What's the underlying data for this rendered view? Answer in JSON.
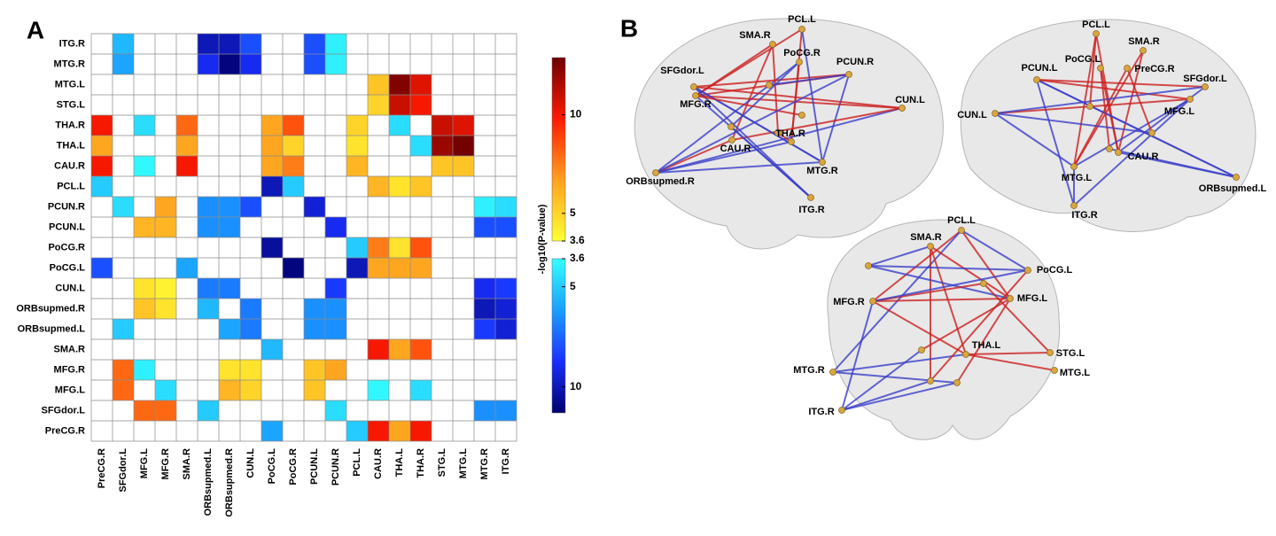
{
  "chart_data": {
    "type": "heatmap",
    "panel_label": "A",
    "rows": [
      "ITG.R",
      "MTG.R",
      "MTG.L",
      "STG.L",
      "THA.R",
      "THA.L",
      "CAU.R",
      "PCL.L",
      "PCUN.R",
      "PCUN.L",
      "PoCG.R",
      "PoCG.L",
      "CUN.L",
      "ORBsupmed.R",
      "ORBsupmed.L",
      "SMA.R",
      "MFG.R",
      "MFG.L",
      "SFGdor.L",
      "PreCG.R"
    ],
    "columns": [
      "PreCG.R",
      "SFGdor.L",
      "MFG.L",
      "MFG.R",
      "SMA.R",
      "ORBsupmed.L",
      "ORBsupmed.R",
      "CUN.L",
      "PoCG.L",
      "PoCG.R",
      "PCUN.L",
      "PCUN.R",
      "PCL.L",
      "CAU.R",
      "THA.L",
      "THA.R",
      "STG.L",
      "MTG.L",
      "MTG.R",
      "ITG.R"
    ],
    "z_warm": [
      [
        null,
        null,
        null,
        null,
        null,
        null,
        null,
        null,
        null,
        null,
        null,
        null,
        null,
        null,
        null,
        null,
        null,
        null,
        null,
        null
      ],
      [
        null,
        null,
        null,
        null,
        null,
        null,
        null,
        null,
        null,
        null,
        null,
        null,
        null,
        null,
        null,
        null,
        null,
        null,
        null,
        null
      ],
      [
        null,
        null,
        null,
        null,
        null,
        null,
        null,
        null,
        null,
        null,
        null,
        null,
        null,
        5.5,
        12.5,
        10.5,
        null,
        null,
        null,
        null
      ],
      [
        null,
        null,
        null,
        null,
        null,
        null,
        null,
        null,
        null,
        null,
        null,
        null,
        null,
        5,
        11,
        10,
        null,
        null,
        null,
        null
      ],
      [
        10,
        null,
        null,
        null,
        8,
        null,
        null,
        null,
        6.5,
        8.5,
        null,
        null,
        5,
        null,
        null,
        null,
        11,
        10.5,
        null,
        null
      ],
      [
        6.5,
        null,
        null,
        null,
        6.5,
        null,
        null,
        null,
        6.5,
        5,
        null,
        null,
        4.5,
        null,
        null,
        null,
        12,
        12.8,
        null,
        null
      ],
      [
        10,
        null,
        null,
        null,
        10,
        null,
        null,
        null,
        6.5,
        7.5,
        null,
        null,
        6,
        null,
        null,
        null,
        5.5,
        5.5,
        null,
        null
      ],
      [
        null,
        null,
        null,
        null,
        null,
        null,
        null,
        null,
        null,
        null,
        null,
        null,
        null,
        6,
        4.5,
        5.5,
        null,
        null,
        null,
        null
      ],
      [
        null,
        null,
        null,
        6.5,
        null,
        null,
        null,
        null,
        null,
        null,
        null,
        null,
        null,
        null,
        null,
        null,
        null,
        null,
        null,
        null
      ],
      [
        null,
        null,
        6,
        6,
        null,
        null,
        null,
        null,
        null,
        null,
        null,
        null,
        null,
        null,
        null,
        null,
        null,
        null,
        null,
        null
      ],
      [
        null,
        null,
        null,
        null,
        null,
        null,
        null,
        null,
        null,
        null,
        null,
        null,
        null,
        7.5,
        4.5,
        8.5,
        null,
        null,
        null,
        null
      ],
      [
        null,
        null,
        null,
        null,
        null,
        null,
        null,
        null,
        null,
        null,
        null,
        null,
        null,
        6.5,
        6.5,
        6.5,
        null,
        null,
        null,
        null
      ],
      [
        null,
        null,
        4.5,
        4,
        null,
        null,
        null,
        null,
        null,
        null,
        null,
        null,
        null,
        null,
        null,
        null,
        null,
        null,
        null,
        null
      ],
      [
        null,
        null,
        5.5,
        4.5,
        null,
        null,
        null,
        null,
        null,
        null,
        null,
        null,
        null,
        null,
        null,
        null,
        null,
        null,
        null,
        null
      ],
      [
        null,
        null,
        null,
        null,
        null,
        null,
        null,
        null,
        null,
        null,
        null,
        null,
        null,
        null,
        null,
        null,
        null,
        null,
        null,
        null
      ],
      [
        null,
        null,
        null,
        null,
        null,
        null,
        null,
        null,
        null,
        null,
        null,
        null,
        null,
        10,
        6.5,
        8.5,
        null,
        null,
        null,
        null
      ],
      [
        null,
        8,
        null,
        null,
        null,
        null,
        4.5,
        4.5,
        null,
        null,
        5.5,
        6.5,
        null,
        null,
        null,
        null,
        null,
        null,
        null,
        null
      ],
      [
        null,
        8,
        null,
        null,
        null,
        null,
        6,
        5,
        null,
        null,
        5.5,
        null,
        null,
        null,
        null,
        null,
        null,
        null,
        null,
        null
      ],
      [
        null,
        null,
        8,
        8,
        null,
        null,
        null,
        null,
        null,
        null,
        null,
        null,
        null,
        null,
        null,
        null,
        null,
        null,
        null,
        null
      ],
      [
        null,
        null,
        null,
        null,
        null,
        null,
        null,
        null,
        null,
        null,
        null,
        null,
        null,
        10,
        6.5,
        10,
        null,
        null,
        null,
        null
      ]
    ],
    "z_cool": [
      [
        null,
        5.5,
        null,
        null,
        null,
        10,
        10,
        8,
        null,
        null,
        8,
        4,
        null,
        null,
        null,
        null,
        null,
        null,
        null,
        null
      ],
      [
        null,
        6,
        null,
        null,
        null,
        9,
        11,
        9,
        null,
        null,
        8,
        4,
        null,
        null,
        null,
        null,
        null,
        null,
        null,
        null
      ],
      [
        null,
        null,
        null,
        null,
        null,
        null,
        null,
        null,
        null,
        null,
        null,
        null,
        null,
        null,
        null,
        null,
        null,
        null,
        null,
        null
      ],
      [
        null,
        null,
        null,
        null,
        null,
        null,
        null,
        null,
        null,
        null,
        null,
        null,
        null,
        null,
        null,
        null,
        null,
        null,
        null,
        null
      ],
      [
        null,
        null,
        4.5,
        null,
        null,
        null,
        null,
        null,
        null,
        null,
        null,
        null,
        null,
        null,
        4.5,
        null,
        null,
        null,
        null,
        null
      ],
      [
        null,
        null,
        null,
        null,
        null,
        null,
        null,
        null,
        null,
        null,
        null,
        null,
        null,
        null,
        null,
        4.5,
        null,
        null,
        null,
        null
      ],
      [
        null,
        null,
        3.8,
        null,
        null,
        null,
        null,
        null,
        null,
        null,
        null,
        null,
        null,
        null,
        null,
        null,
        null,
        null,
        null,
        null
      ],
      [
        5,
        null,
        null,
        null,
        null,
        null,
        null,
        null,
        10,
        5,
        null,
        null,
        null,
        null,
        null,
        null,
        null,
        null,
        null,
        null
      ],
      [
        null,
        4.5,
        null,
        null,
        null,
        6.5,
        6.5,
        8,
        null,
        null,
        9.5,
        null,
        null,
        null,
        null,
        null,
        null,
        null,
        4,
        4.5
      ],
      [
        null,
        null,
        null,
        null,
        null,
        6.5,
        6.5,
        null,
        null,
        null,
        null,
        9,
        null,
        null,
        null,
        null,
        null,
        null,
        8,
        8
      ],
      [
        null,
        null,
        null,
        null,
        null,
        null,
        null,
        null,
        10.5,
        null,
        null,
        null,
        5,
        null,
        null,
        null,
        null,
        null,
        null,
        null
      ],
      [
        8,
        null,
        null,
        null,
        6,
        null,
        null,
        null,
        null,
        11,
        null,
        null,
        10,
        null,
        null,
        null,
        null,
        null,
        null,
        null
      ],
      [
        null,
        null,
        null,
        null,
        null,
        7,
        7,
        null,
        null,
        null,
        null,
        8.5,
        null,
        null,
        null,
        null,
        null,
        null,
        9,
        8.5
      ],
      [
        null,
        null,
        null,
        null,
        null,
        5.5,
        null,
        7,
        null,
        null,
        6.5,
        6.5,
        null,
        null,
        null,
        null,
        null,
        null,
        10,
        9.5
      ],
      [
        null,
        5,
        null,
        null,
        null,
        null,
        6,
        7,
        null,
        null,
        6.5,
        6.5,
        null,
        null,
        null,
        null,
        null,
        null,
        8.5,
        9.5
      ],
      [
        null,
        null,
        null,
        null,
        null,
        null,
        null,
        null,
        5.5,
        null,
        null,
        null,
        null,
        null,
        null,
        null,
        null,
        null,
        null,
        null
      ],
      [
        null,
        null,
        4,
        null,
        null,
        null,
        null,
        null,
        null,
        null,
        null,
        null,
        null,
        null,
        null,
        null,
        null,
        null,
        null,
        null
      ],
      [
        null,
        null,
        null,
        4.5,
        null,
        null,
        null,
        null,
        null,
        null,
        null,
        null,
        null,
        3.8,
        null,
        4.5,
        null,
        null,
        null,
        null
      ],
      [
        null,
        null,
        null,
        null,
        null,
        5,
        null,
        null,
        null,
        null,
        null,
        4.5,
        null,
        null,
        null,
        null,
        null,
        null,
        6.5,
        6.5
      ],
      [
        null,
        null,
        null,
        null,
        null,
        null,
        null,
        null,
        6,
        null,
        null,
        null,
        5,
        null,
        null,
        null,
        null,
        null,
        null,
        null
      ]
    ],
    "colorbar_label": "-log10(P-value)",
    "warm": {
      "lim": [
        3.6,
        12.9
      ],
      "ticks": [
        3.6,
        5,
        10
      ],
      "colors": [
        "#ffff33",
        "#ffa020",
        "#ff1a00",
        "#6e0000"
      ]
    },
    "cool": {
      "lim": [
        3.6,
        11.3
      ],
      "ticks": [
        3.6,
        5,
        10
      ],
      "colors": [
        "#33ffff",
        "#1a9fff",
        "#1a2fff",
        "#00006e"
      ]
    }
  },
  "panel_b": {
    "label": "B",
    "views": [
      {
        "nodes": [
          "PCL.L",
          "SMA.R",
          "PoCG.R",
          "PCUN.R",
          "SFGdor.L",
          "MFG.R",
          "CUN.L",
          "THA.R",
          "CAU.R",
          "MTG.R",
          "ORBsupmed.R",
          "ITG.R"
        ]
      },
      {
        "nodes": [
          "PCL.L",
          "SMA.R",
          "PoCG.L",
          "PreCG.R",
          "PCUN.L",
          "SFGdor.L",
          "MFG.L",
          "CUN.L",
          "CAU.R",
          "MTG.L",
          "ITG.R",
          "ORBsupmed.L"
        ]
      },
      {
        "nodes": [
          "PCL.L",
          "SMA.R",
          "PoCG.L",
          "MFG.R",
          "MFG.L",
          "THA.L",
          "STG.L",
          "MTG.L",
          "MTG.R",
          "ITG.R"
        ]
      }
    ]
  }
}
